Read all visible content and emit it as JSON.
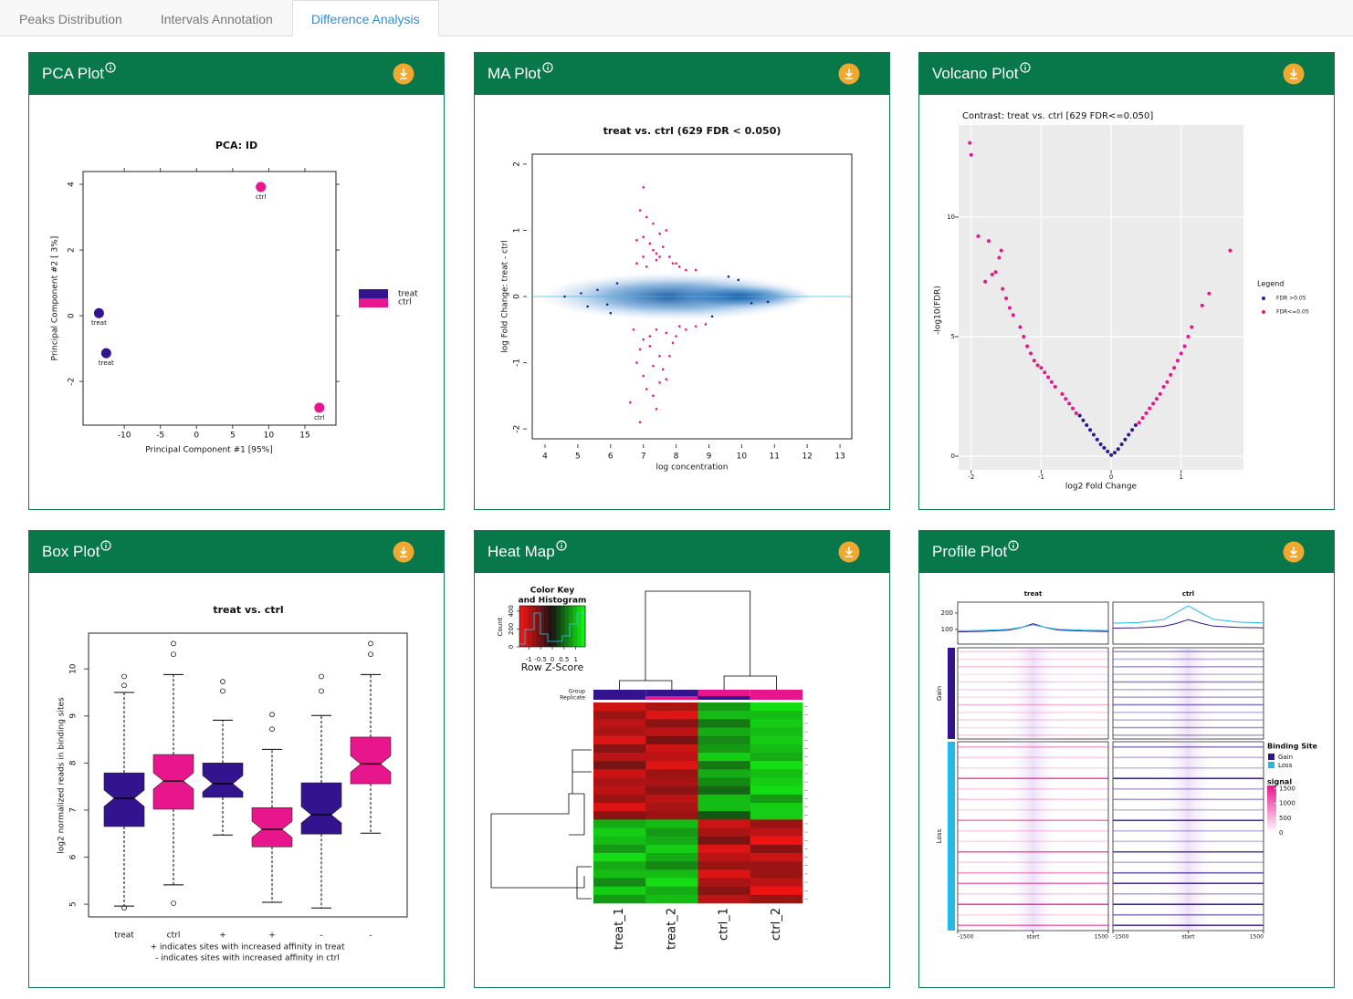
{
  "tabs": [
    {
      "label": "Peaks Distribution"
    },
    {
      "label": "Intervals Annotation"
    },
    {
      "label": "Difference Analysis",
      "active": true
    }
  ],
  "panels": [
    {
      "title": "PCA Plot"
    },
    {
      "title": "MA Plot"
    },
    {
      "title": "Volcano Plot"
    },
    {
      "title": "Box Plot"
    },
    {
      "title": "Heat Map"
    },
    {
      "title": "Profile Plot"
    }
  ],
  "chart_data": [
    {
      "type": "scatter",
      "title": "PCA: ID",
      "xlabel": "Principal Component #1 [95%]",
      "ylabel": "Principal Component #2 [ 3%]",
      "xlim": [
        -15.7,
        19.3
      ],
      "xticks": [
        -10,
        -5,
        0,
        5,
        10,
        15
      ],
      "ylim": [
        -3.33,
        4.39
      ],
      "yticks": [
        -2,
        0,
        2,
        4
      ],
      "series": [
        {
          "name": "treat",
          "color": "#34138f",
          "x": [
            -13.5,
            -12.5
          ],
          "values": [
            0.08,
            -1.14
          ]
        },
        {
          "name": "ctrl",
          "color": "#e8168d",
          "x": [
            8.9,
            17.0
          ],
          "values": [
            3.92,
            -2.8
          ]
        }
      ]
    },
    {
      "type": "scatter",
      "title": "treat vs. ctrl (629 FDR < 0.050)",
      "xlabel": "log concentration",
      "ylabel": "log Fold Change: treat - ctrl",
      "xlim": [
        3.61,
        13.36
      ],
      "xticks": [
        4,
        5,
        6,
        7,
        8,
        9,
        10,
        11,
        12,
        13
      ],
      "ylim": [
        -2.15,
        2.15
      ],
      "yticks": [
        -2,
        -1,
        0,
        1,
        2
      ],
      "hline": 0,
      "series": [
        {
          "name": "FDR > 0.05",
          "color": "#1d2a8c",
          "x": [
            4.6,
            5.1,
            5.6,
            5.9,
            6.2,
            9.1,
            9.6,
            10.3,
            6.0,
            5.3,
            10.8,
            9.9
          ],
          "values": [
            0,
            0.05,
            0.1,
            -0.12,
            0.2,
            -0.3,
            0.3,
            -0.1,
            -0.25,
            -0.15,
            -0.08,
            0.25
          ]
        },
        {
          "name": "FDR < 0.05",
          "color": "#e8168d",
          "x": [
            6.8,
            7.0,
            7.1,
            7.3,
            7.5,
            7.7,
            7.9,
            8.1,
            8.3,
            8.6,
            6.9,
            7.2,
            7.4,
            7.6,
            7.0,
            7.3,
            6.8,
            7.5,
            7.8,
            8.0,
            7.1,
            7.4,
            7.0,
            6.7,
            6.9,
            7.0,
            7.2,
            7.3,
            7.5,
            7.7,
            7.9,
            8.1,
            8.3,
            8.6,
            8.9,
            6.8,
            7.1,
            7.4,
            7.6,
            6.9,
            7.2,
            7.5,
            7.8,
            7.0,
            7.3,
            6.6,
            7.7,
            8.0,
            7.4
          ],
          "values": [
            0.5,
            0.9,
            1.2,
            0.7,
            0.6,
            1.0,
            0.5,
            0.45,
            0.4,
            0.4,
            1.3,
            0.8,
            0.55,
            0.75,
            0.6,
            1.1,
            0.85,
            0.95,
            0.6,
            0.5,
            0.45,
            0.65,
            1.65,
            -0.5,
            -0.8,
            -1.2,
            -0.6,
            -1.5,
            -0.9,
            -0.55,
            -0.7,
            -0.45,
            -0.5,
            -0.45,
            -0.42,
            -1.0,
            -1.4,
            -1.7,
            -1.1,
            -1.9,
            -0.75,
            -1.3,
            -0.9,
            -0.65,
            -1.05,
            -1.6,
            -1.25,
            -0.6,
            -0.5
          ]
        }
      ]
    },
    {
      "type": "scatter",
      "title": "Contrast: treat vs. ctrl  [629 FDR<=0.050]",
      "xlabel": "log2 Fold Change",
      "ylabel": "-log10(FDR)",
      "grid": true,
      "legend_title": "Legend",
      "xlim": [
        -2.18,
        1.89
      ],
      "xticks": [
        -2,
        -1,
        0,
        1
      ],
      "ylim": [
        -0.57,
        13.85
      ],
      "yticks": [
        0,
        5,
        10
      ],
      "series": [
        {
          "name": "FDR >0.05",
          "color": "#2e1a8c",
          "x": [
            -0.45,
            -0.4,
            -0.35,
            -0.3,
            -0.25,
            -0.2,
            -0.15,
            -0.1,
            -0.05,
            0,
            0.05,
            0.1,
            0.15,
            0.2,
            0.25,
            0.3,
            0.35
          ],
          "values": [
            1.7,
            1.5,
            1.3,
            1.1,
            0.9,
            0.7,
            0.5,
            0.35,
            0.2,
            0.05,
            0.15,
            0.3,
            0.5,
            0.7,
            0.9,
            1.1,
            1.3
          ]
        },
        {
          "name": "FDR<=0.05",
          "color": "#e8168d",
          "x": [
            -0.5,
            -0.55,
            -0.6,
            -0.65,
            -0.7,
            -0.8,
            -0.85,
            -0.9,
            -0.95,
            -1.0,
            -1.05,
            -1.1,
            -1.15,
            -1.2,
            -1.25,
            -1.3,
            -1.4,
            -1.5,
            -1.55,
            -1.6,
            -1.7,
            -1.75,
            -1.8,
            -1.9,
            -2.0,
            -2.02,
            -1.57,
            -1.45,
            -1.65,
            0.4,
            0.45,
            0.5,
            0.55,
            0.6,
            0.65,
            0.7,
            0.75,
            0.8,
            0.85,
            0.9,
            0.95,
            1.0,
            1.05,
            1.1,
            1.15,
            1.3,
            1.4,
            1.7
          ],
          "values": [
            1.8,
            2.0,
            2.2,
            2.4,
            2.6,
            2.9,
            3.1,
            3.3,
            3.5,
            3.7,
            3.8,
            4.0,
            4.3,
            4.6,
            5.0,
            5.4,
            5.9,
            6.6,
            7.0,
            8.3,
            7.6,
            9.0,
            7.3,
            9.2,
            12.6,
            13.1,
            8.6,
            6.2,
            7.7,
            1.4,
            1.6,
            1.8,
            2.0,
            2.2,
            2.4,
            2.6,
            2.9,
            3.1,
            3.4,
            3.7,
            4.0,
            4.3,
            4.6,
            5.0,
            5.4,
            6.3,
            6.8,
            8.6
          ]
        }
      ]
    },
    {
      "type": "box",
      "title": "treat vs. ctrl",
      "ylabel": "log2 normalized reads in binding sites",
      "notes": [
        "+ indicates sites with increased affinity in treat",
        "- indicates sites with increased affinity in ctrl"
      ],
      "ylim": [
        4.73,
        10.76
      ],
      "yticks": [
        5,
        6,
        7,
        8,
        9,
        10
      ],
      "categories": [
        "treat",
        "ctrl",
        "+",
        "+",
        "-",
        "-"
      ],
      "colors": [
        "#34138f",
        "#e8168d",
        "#34138f",
        "#e8168d",
        "#34138f",
        "#e8168d"
      ],
      "boxes": [
        {
          "min": 4.96,
          "q1": 6.65,
          "median": 7.25,
          "q3": 7.79,
          "max": 9.5,
          "outliers": [
            9.84,
            9.65,
            4.92
          ]
        },
        {
          "min": 5.41,
          "q1": 7.02,
          "median": 7.62,
          "q3": 8.18,
          "max": 9.88,
          "outliers": [
            10.54,
            10.31,
            5.02
          ]
        },
        {
          "min": 6.47,
          "q1": 7.27,
          "median": 7.56,
          "q3": 8.0,
          "max": 8.91,
          "outliers": [
            9.73,
            9.53
          ]
        },
        {
          "min": 5.04,
          "q1": 6.22,
          "median": 6.59,
          "q3": 7.05,
          "max": 8.29,
          "outliers": [
            9.03,
            8.72
          ]
        },
        {
          "min": 4.92,
          "q1": 6.49,
          "median": 6.9,
          "q3": 7.58,
          "max": 9.01,
          "outliers": [
            9.84,
            9.53
          ]
        },
        {
          "min": 6.51,
          "q1": 7.56,
          "median": 7.98,
          "q3": 8.55,
          "max": 9.88,
          "outliers": [
            10.54,
            10.31
          ]
        }
      ]
    },
    {
      "type": "heatmap",
      "key_title": [
        "Color Key",
        "and Histogram"
      ],
      "key_xlabel": "Row Z-Score",
      "key_ylabel": "Count",
      "zlim": [
        -1.4,
        1.4
      ],
      "key_xticks": [
        -1,
        -0.5,
        0,
        0.5,
        1
      ],
      "key_ylim": [
        0,
        460
      ],
      "key_yticks": [
        0,
        200,
        400
      ],
      "annotation_labels": [
        "Group",
        "Replicate"
      ],
      "columns": [
        "treat_1",
        "treat_2",
        "ctrl_1",
        "ctrl_2"
      ],
      "group_colors": [
        "#34138f",
        "#34138f",
        "#e8168d",
        "#e8168d"
      ],
      "replicate_colors": [
        "#34138f",
        "#e8168d",
        "#34138f",
        "#e8168d"
      ],
      "rows": [
        [
          -1.1,
          -0.9,
          0.8,
          1.2
        ],
        [
          -0.8,
          -1.2,
          1.0,
          1.0
        ],
        [
          -1.0,
          -0.7,
          0.6,
          1.1
        ],
        [
          -0.9,
          -1.0,
          0.9,
          1.0
        ],
        [
          -1.2,
          -0.6,
          0.7,
          1.1
        ],
        [
          -0.7,
          -1.1,
          0.8,
          1.0
        ],
        [
          -1.0,
          -1.0,
          1.1,
          0.9
        ],
        [
          -0.6,
          -1.2,
          0.6,
          1.2
        ],
        [
          -1.1,
          -0.8,
          0.9,
          1.0
        ],
        [
          -0.9,
          -0.9,
          0.7,
          1.1
        ],
        [
          -1.0,
          -0.7,
          0.5,
          1.2
        ],
        [
          -0.8,
          -1.0,
          1.0,
          0.8
        ],
        [
          -1.2,
          -0.9,
          1.0,
          1.1
        ],
        [
          -0.7,
          -0.8,
          0.4,
          1.1
        ],
        [
          0.9,
          1.0,
          -1.1,
          -0.8
        ],
        [
          1.1,
          0.8,
          -0.9,
          -1.0
        ],
        [
          1.0,
          0.9,
          -0.6,
          -1.3
        ],
        [
          0.8,
          1.1,
          -1.2,
          -0.7
        ],
        [
          1.2,
          0.9,
          -1.0,
          -1.1
        ],
        [
          0.9,
          0.7,
          -0.8,
          -0.8
        ],
        [
          1.0,
          1.0,
          -1.2,
          -0.8
        ],
        [
          0.7,
          1.2,
          -0.9,
          -1.0
        ],
        [
          1.1,
          0.9,
          -0.7,
          -1.3
        ],
        [
          0.8,
          1.0,
          -1.0,
          -0.8
        ]
      ]
    },
    {
      "type": "profile",
      "columns": [
        "treat",
        "ctrl"
      ],
      "column_colors": [
        "#e8168d",
        "#34138f"
      ],
      "x": [
        -1500,
        -1000,
        -500,
        -250,
        0,
        250,
        500,
        1000,
        1500
      ],
      "xlim": [
        -1500,
        1500
      ],
      "xticks": [
        -1500,
        {
          "value": 0,
          "label": "start"
        },
        1500
      ],
      "ylim": [
        10,
        267
      ],
      "yticks": [
        100,
        200
      ],
      "legend_title": "Binding Site",
      "signal_title": "signal",
      "signal_lim": [
        0,
        1600
      ],
      "signal_ticks": [
        1500,
        1000,
        500,
        0
      ],
      "series": [
        {
          "name": "Gain",
          "color": "#34138f",
          "values": [
            [
              85,
              88,
              95,
              110,
              135,
              112,
              96,
              90,
              87
            ],
            [
              108,
              110,
              118,
              135,
              160,
              138,
              120,
              112,
              110
            ]
          ],
          "rows": [
            [
              300,
              250,
              400,
              200,
              350,
              280,
              220,
              500,
              260,
              310,
              240,
              330
            ],
            [
              700,
              500,
              650,
              450,
              800,
              550,
              600,
              900,
              480,
              520,
              700,
              620
            ]
          ]
        },
        {
          "name": "Loss",
          "color": "#22b8e8",
          "values": [
            [
              92,
              94,
              100,
              112,
              128,
              113,
              101,
              95,
              93
            ],
            [
              138,
              142,
              160,
              200,
              245,
              202,
              162,
              145,
              140
            ]
          ],
          "rows": [
            [
              600,
              300,
              250,
              1200,
              350,
              400,
              280,
              900,
              320,
              260,
              1100,
              300,
              700,
              1000,
              350,
              1300,
              280,
              1000
            ],
            [
              900,
              500,
              450,
              1500,
              600,
              700,
              480,
              1400,
              500,
              450,
              1300,
              520,
              1100,
              1400,
              600,
              1500,
              900,
              1400
            ]
          ]
        }
      ]
    }
  ]
}
